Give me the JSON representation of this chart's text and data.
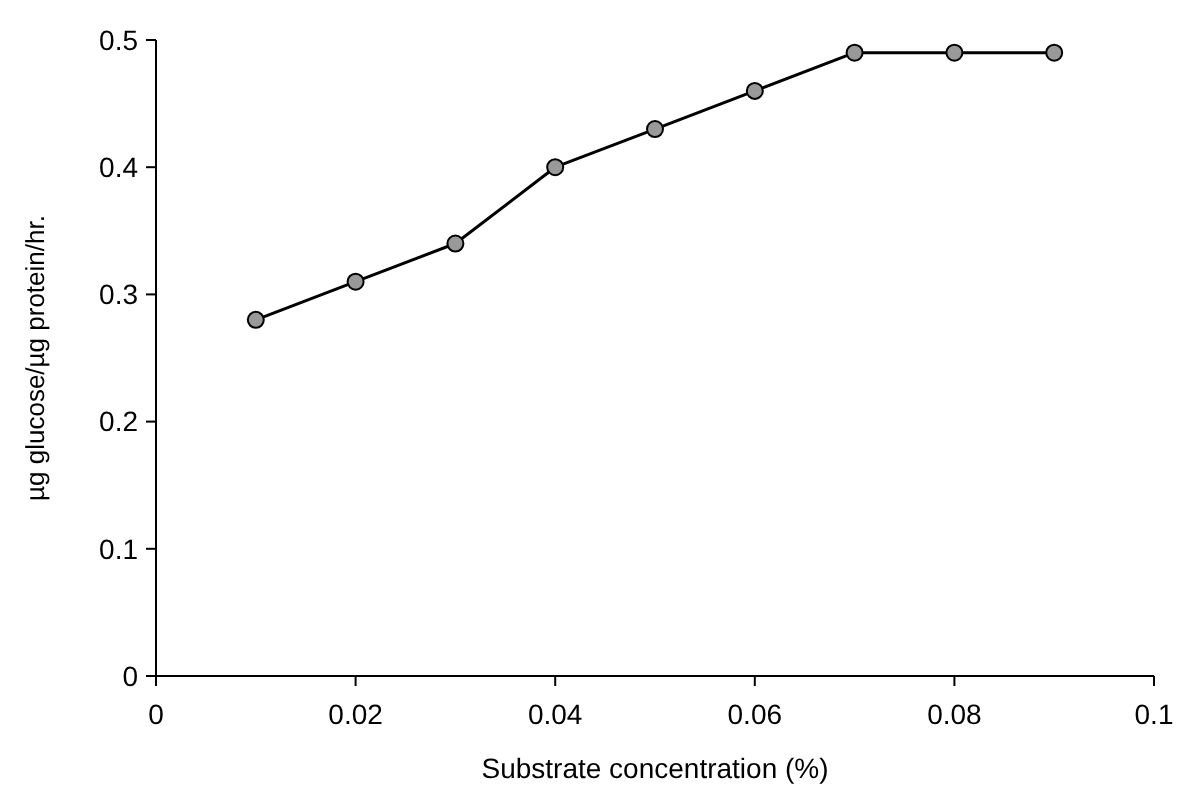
{
  "chart_data": {
    "type": "line",
    "xlabel": "Substrate concentration (%)",
    "ylabel": "µg glucose/µg protein/hr.",
    "x": [
      0.01,
      0.02,
      0.03,
      0.04,
      0.05,
      0.06,
      0.07,
      0.08,
      0.09
    ],
    "series": [
      {
        "color": "#000000",
        "values": [
          0.28,
          0.31,
          0.34,
          0.4,
          0.43,
          0.46,
          0.49,
          0.49,
          0.49
        ]
      }
    ],
    "xlim": [
      0,
      0.1
    ],
    "xticks": [
      0,
      0.02,
      0.04,
      0.06,
      0.08,
      0.1
    ],
    "ylim": [
      0,
      0.5
    ],
    "yticks": [
      0,
      0.1,
      0.2,
      0.3,
      0.4,
      0.5
    ],
    "grid": false,
    "marker": "circle",
    "line_style": "solid"
  }
}
